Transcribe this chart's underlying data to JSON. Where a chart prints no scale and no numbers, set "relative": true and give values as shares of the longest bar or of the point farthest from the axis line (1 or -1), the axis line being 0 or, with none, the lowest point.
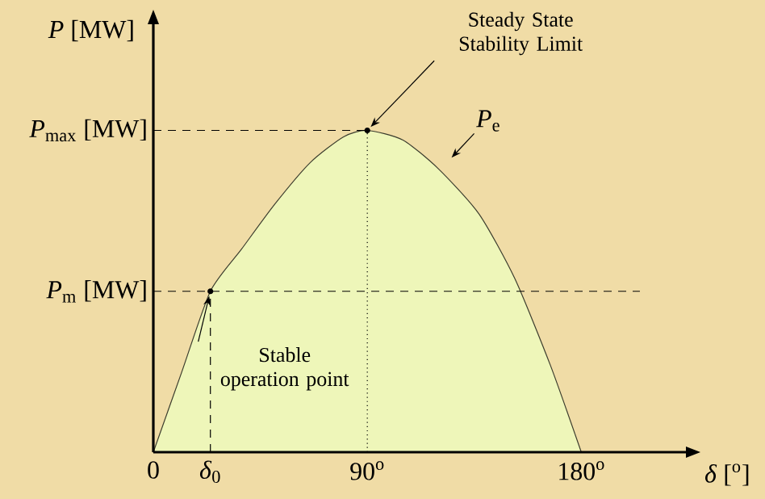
{
  "chart_data": {
    "type": "area",
    "relative": true,
    "ylabel": "*P* [MW]",
    "xlabel": "*δ* [$^{o}$]",
    "x": [
      0,
      12,
      24,
      37,
      51,
      66,
      80,
      90,
      105,
      120,
      137,
      152,
      167,
      180
    ],
    "series": [
      {
        "name": "*P*$_{e}$",
        "color": "#eef6b9",
        "values": [
          0,
          0.25,
          0.5,
          0.63,
          0.77,
          0.9,
          0.98,
          1,
          0.97,
          0.88,
          0.74,
          0.54,
          0.27,
          0
        ]
      }
    ],
    "xlim": [
      0,
      224
    ],
    "xticks": [
      0,
      {
        "value": 90,
        "label": "90$^{o}$"
      },
      {
        "value": 180,
        "label": "180$^{o}$"
      }
    ],
    "ref_lines": [
      {
        "axis": "y",
        "value": 1,
        "label": "*P*$_{max}$ [MW]",
        "line_style": "dashed"
      },
      {
        "axis": "y",
        "value": 0.5,
        "label": "*P*$_{m}$ [MW]",
        "line_style": "dashed"
      },
      {
        "axis": "x",
        "value": 24,
        "label": "*δ*$_{0}$",
        "line_style": "dashed"
      },
      {
        "axis": "x",
        "value": 90,
        "line_style": "dotted"
      }
    ],
    "annotations": [
      {
        "text": "Steady State Stability Limit",
        "x": 90,
        "y": 1
      },
      {
        "text": "Stable operation point",
        "x": 24,
        "y": 0.5
      }
    ],
    "grid": false
  }
}
